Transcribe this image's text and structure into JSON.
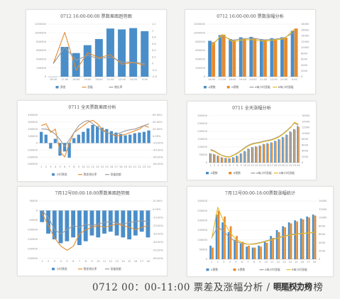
{
  "caption": "0712 00：00-11:00 票差及涨幅分析 / 明星权力榜",
  "watermark": "明星权力榜",
  "colors": {
    "blue": "#4a8ec9",
    "orange": "#e58b2e",
    "gray": "#9b9b9b",
    "yellow": "#e6b820",
    "red": "#d23a24"
  },
  "chart_data": [
    {
      "type": "bar",
      "title": "0712 16:00-00:00 票数差距趋势图",
      "categories": [
        "16:00",
        "17:00",
        "18:00",
        "19:00",
        "20:00",
        "21:00",
        "22:00",
        "23:00",
        "0:00"
      ],
      "ylim": [
        0,
        1200000
      ],
      "ylim_right": [
        -0.4,
        1.2
      ],
      "left_ticks": [
        "1200000",
        "1000000",
        "800000",
        "600000",
        "400000",
        "200000",
        "0"
      ],
      "right_ticks": [
        "1.2",
        "1",
        "0.8",
        "0.6",
        "0.4",
        "0.2",
        "0",
        "-0.2",
        "-0.4"
      ],
      "series": [
        {
          "name": "票差",
          "kind": "bar",
          "color": "#4a8ec9",
          "values": [
            0,
            680000,
            540000,
            720000,
            860000,
            1100000,
            1080000,
            1110000,
            1040000
          ]
        },
        {
          "name": "涨幅",
          "kind": "line",
          "axis": "right",
          "color": "#e58b2e",
          "values": [
            0,
            0.95,
            -0.2,
            0.33,
            0.18,
            0.27,
            -0.02,
            0.03,
            -0.05
          ]
        },
        {
          "name": "增长率",
          "kind": "line",
          "axis": "right",
          "color": "#9b9b9b",
          "values": [
            0,
            0.5,
            0.1,
            0.25,
            0.15,
            0.2,
            0.05,
            0.04,
            0.0
          ]
        }
      ]
    },
    {
      "type": "bar",
      "title": "0712 16:00-00:00 票数涨幅分析",
      "categories": [
        "16:00",
        "17:00",
        "18:00",
        "19:00",
        "20:00",
        "21:00",
        "22:00",
        "23:00",
        "0:00"
      ],
      "ylim": [
        0,
        1200000
      ],
      "ylim_right": [
        0,
        18000
      ],
      "left_ticks": [
        "1200000",
        "1000000",
        "800000",
        "600000",
        "400000",
        "200000",
        "0"
      ],
      "right_ticks": [
        "18000",
        "16000",
        "14000",
        "12000",
        "10000",
        "8000",
        "6000",
        "4000",
        "2000",
        "0"
      ],
      "series": [
        {
          "name": "A票数",
          "kind": "bar",
          "color": "#4a8ec9",
          "values": [
            820000,
            950000,
            860000,
            900000,
            910000,
            860000,
            880000,
            900000,
            1050000
          ]
        },
        {
          "name": "B票数",
          "kind": "bar",
          "color": "#e58b2e",
          "values": [
            790000,
            960000,
            830000,
            860000,
            870000,
            840000,
            860000,
            890000,
            1100000
          ]
        },
        {
          "name": "A每小时涨幅",
          "kind": "line",
          "axis": "right",
          "color": "#9b9b9b",
          "values": [
            11000,
            14000,
            12500,
            13000,
            13200,
            12600,
            12800,
            13300,
            15200
          ]
        },
        {
          "name": "B每小时涨幅",
          "kind": "line",
          "axis": "right",
          "color": "#e6b820",
          "values": [
            10500,
            14500,
            12000,
            12600,
            12700,
            12200,
            12500,
            13000,
            16200
          ]
        }
      ]
    },
    {
      "type": "bar",
      "title": "0711 全天票数差距分析",
      "categories": [
        "1",
        "2",
        "3",
        "4",
        "5",
        "6",
        "7",
        "8",
        "9",
        "10",
        "11",
        "12",
        "13",
        "14",
        "15",
        "16",
        "17",
        "18",
        "19",
        "20",
        "21",
        "22",
        "23",
        "24"
      ],
      "ylim": [
        -300000,
        400000
      ],
      "ylim_right": [
        -0.8,
        0.6
      ],
      "left_ticks": [
        "400000",
        "300000",
        "200000",
        "100000",
        "0",
        "-100000",
        "-200000",
        "-300000"
      ],
      "right_ticks": [
        "60.00%",
        "40.00%",
        "20.00%",
        "0.00%",
        "-20.00%",
        "-40.00%",
        "-60.00%",
        "-80.00%"
      ],
      "series": [
        {
          "name": "小时票差",
          "kind": "bar",
          "color": "#4a8ec9",
          "values": [
            160000,
            120000,
            -80000,
            60000,
            -180000,
            -120000,
            -210000,
            70000,
            120000,
            160000,
            210000,
            260000,
            240000,
            220000,
            200000,
            170000,
            150000,
            130000,
            110000,
            120000,
            140000,
            150000,
            160000,
            180000
          ]
        },
        {
          "name": "票差增长率",
          "kind": "line",
          "axis": "right",
          "color": "#e58b2e",
          "values": [
            0.3,
            0.35,
            0.1,
            0.2,
            -0.45,
            -0.6,
            -0.2,
            0.1,
            0.2,
            0.3,
            0.4,
            0.45,
            0.35,
            0.2,
            0.1,
            0.05,
            0.0,
            0.02,
            0.05,
            0.1,
            0.15,
            0.2,
            0.3,
            0.25
          ]
        },
        {
          "name": "涨幅差额",
          "kind": "line",
          "axis": "right",
          "color": "#9b9b9b",
          "values": [
            0.2,
            0.2,
            0.15,
            0.05,
            -0.1,
            -0.3,
            -0.1,
            0.1,
            0.3,
            0.4,
            0.45,
            0.35,
            0.25,
            0.15,
            0.1,
            0.05,
            0.05,
            0.1,
            0.15,
            0.18,
            0.2,
            0.25,
            0.3,
            0.35
          ]
        }
      ]
    },
    {
      "type": "bar",
      "title": "0711 全天涨幅分析",
      "categories": [
        "1",
        "2",
        "3",
        "4",
        "5",
        "6",
        "7",
        "8",
        "9",
        "10",
        "11",
        "12",
        "13",
        "14",
        "15",
        "16",
        "17",
        "18",
        "19",
        "20",
        "21",
        "22",
        "23",
        "24"
      ],
      "ylim": [
        0,
        300000
      ],
      "ylim_right": [
        0,
        16000
      ],
      "left_ticks": [
        "300000",
        "250000",
        "200000",
        "150000",
        "100000",
        "50000",
        "0"
      ],
      "right_ticks": [
        "16000",
        "14000",
        "12000",
        "10000",
        "8000",
        "6000",
        "4000",
        "2000",
        "0"
      ],
      "series": [
        {
          "name": "A票数",
          "kind": "bar",
          "color": "#4a8ec9",
          "values": [
            60000,
            55000,
            45000,
            35000,
            30000,
            28000,
            35000,
            45000,
            60000,
            75000,
            90000,
            100000,
            105000,
            110000,
            120000,
            125000,
            130000,
            140000,
            150000,
            165000,
            180000,
            200000,
            215000,
            235000
          ]
        },
        {
          "name": "B票数",
          "kind": "bar",
          "color": "#e58b2e",
          "values": [
            58000,
            52000,
            43000,
            33000,
            29000,
            27000,
            33000,
            43000,
            58000,
            72000,
            88000,
            98000,
            102000,
            108000,
            118000,
            122000,
            128000,
            138000,
            148000,
            162000,
            178000,
            196000,
            212000,
            230000
          ]
        },
        {
          "name": "A每小时涨幅",
          "kind": "line",
          "axis": "right",
          "color": "#9b9b9b",
          "values": [
            4500,
            4000,
            3200,
            2500,
            2100,
            2000,
            2600,
            3300,
            4200,
            5200,
            6000,
            6500,
            6800,
            7000,
            7400,
            7600,
            7900,
            8400,
            9000,
            9900,
            11000,
            12200,
            13500,
            12800
          ]
        },
        {
          "name": "B每小时涨幅",
          "kind": "line",
          "axis": "right",
          "color": "#e6b820",
          "values": [
            4200,
            3800,
            3000,
            2400,
            2000,
            1900,
            2500,
            3100,
            4000,
            5000,
            5800,
            6300,
            6600,
            6800,
            7200,
            7400,
            7700,
            8200,
            8800,
            9700,
            10800,
            12000,
            13800,
            13200
          ]
        }
      ]
    },
    {
      "type": "bar",
      "title": "7月12号00:00-18:00票数差距趋势图",
      "categories": [
        "1",
        "2",
        "3",
        "4",
        "5",
        "6",
        "7",
        "8",
        "9",
        "10",
        "11",
        "12",
        "13",
        "14",
        "15",
        "16",
        "17",
        "18"
      ],
      "ylim": [
        -250000,
        50000
      ],
      "ylim_right": [
        -0.6,
        0.1
      ],
      "left_ticks": [
        "50000",
        "0",
        "-50000",
        "-100000",
        "-150000",
        "-200000",
        "-250000"
      ],
      "right_ticks": [
        "10.00%",
        "0.00%",
        "-10.00%",
        "-20.00%",
        "-30.00%",
        "-40.00%",
        "-50.00%",
        "-60.00%"
      ],
      "series": [
        {
          "name": "小时票差",
          "kind": "bar",
          "color": "#4a8ec9",
          "values": [
            -60000,
            -120000,
            -150000,
            -170000,
            -160000,
            -140000,
            -180000,
            -160000,
            -130000,
            -140000,
            -120000,
            -110000,
            -130000,
            -140000,
            -150000,
            -130000,
            -110000,
            -140000
          ]
        },
        {
          "name": "票差增长率",
          "kind": "line",
          "axis": "right",
          "color": "#e58b2e",
          "values": [
            -0.05,
            -0.2,
            -0.35,
            -0.45,
            -0.5,
            -0.45,
            -0.3,
            -0.25,
            -0.22,
            -0.2,
            -0.22,
            -0.2,
            -0.18,
            -0.2,
            -0.22,
            -0.25,
            -0.22,
            -0.2
          ]
        },
        {
          "name": "涨幅差额",
          "kind": "line",
          "axis": "right",
          "color": "#9b9b9b",
          "values": [
            -0.02,
            -0.1,
            -0.25,
            -0.3,
            -0.25,
            -0.2,
            -0.22,
            -0.18,
            -0.2,
            -0.18,
            -0.16,
            -0.15,
            -0.17,
            -0.18,
            -0.16,
            -0.15,
            -0.14,
            -0.15
          ]
        }
      ]
    },
    {
      "type": "bar",
      "title": "7月12号00:00-18:00票数涨幅统计",
      "categories": [
        "1",
        "2",
        "3",
        "4",
        "5",
        "6",
        "7",
        "8",
        "9",
        "10",
        "11",
        "12",
        "13",
        "14",
        "15",
        "16",
        "17",
        "18"
      ],
      "ylim": [
        0,
        300000
      ],
      "ylim_right": [
        0,
        14000
      ],
      "left_ticks": [
        "300000",
        "250000",
        "200000",
        "150000",
        "100000",
        "50000",
        "0"
      ],
      "right_ticks": [
        "14000",
        "12000",
        "10000",
        "8000",
        "6000",
        "4000",
        "2000",
        "0"
      ],
      "series": [
        {
          "name": "A票数",
          "kind": "bar",
          "color": "#4a8ec9",
          "values": [
            70000,
            230000,
            190000,
            140000,
            100000,
            80000,
            65000,
            60000,
            70000,
            90000,
            120000,
            150000,
            170000,
            190000,
            200000,
            210000,
            220000,
            230000
          ]
        },
        {
          "name": "B票数",
          "kind": "bar",
          "color": "#e58b2e",
          "values": [
            60000,
            250000,
            220000,
            170000,
            120000,
            90000,
            70000,
            60000,
            65000,
            85000,
            110000,
            140000,
            165000,
            185000,
            195000,
            205000,
            215000,
            225000
          ]
        },
        {
          "name": "A每小时涨幅",
          "kind": "line",
          "axis": "right",
          "color": "#9b9b9b",
          "values": [
            5200,
            7800,
            6600,
            5200,
            4200,
            3800,
            3600,
            3700,
            4000,
            4400,
            4800,
            5200,
            5600,
            5900,
            6100,
            6200,
            6300,
            6400
          ]
        },
        {
          "name": "B每小时涨幅",
          "kind": "line",
          "axis": "right",
          "color": "#e6b820",
          "values": [
            5000,
            12500,
            9000,
            6500,
            4800,
            4000,
            3600,
            3600,
            3900,
            4300,
            4700,
            5100,
            5500,
            5800,
            6000,
            6200,
            6300,
            6500
          ]
        }
      ]
    }
  ]
}
